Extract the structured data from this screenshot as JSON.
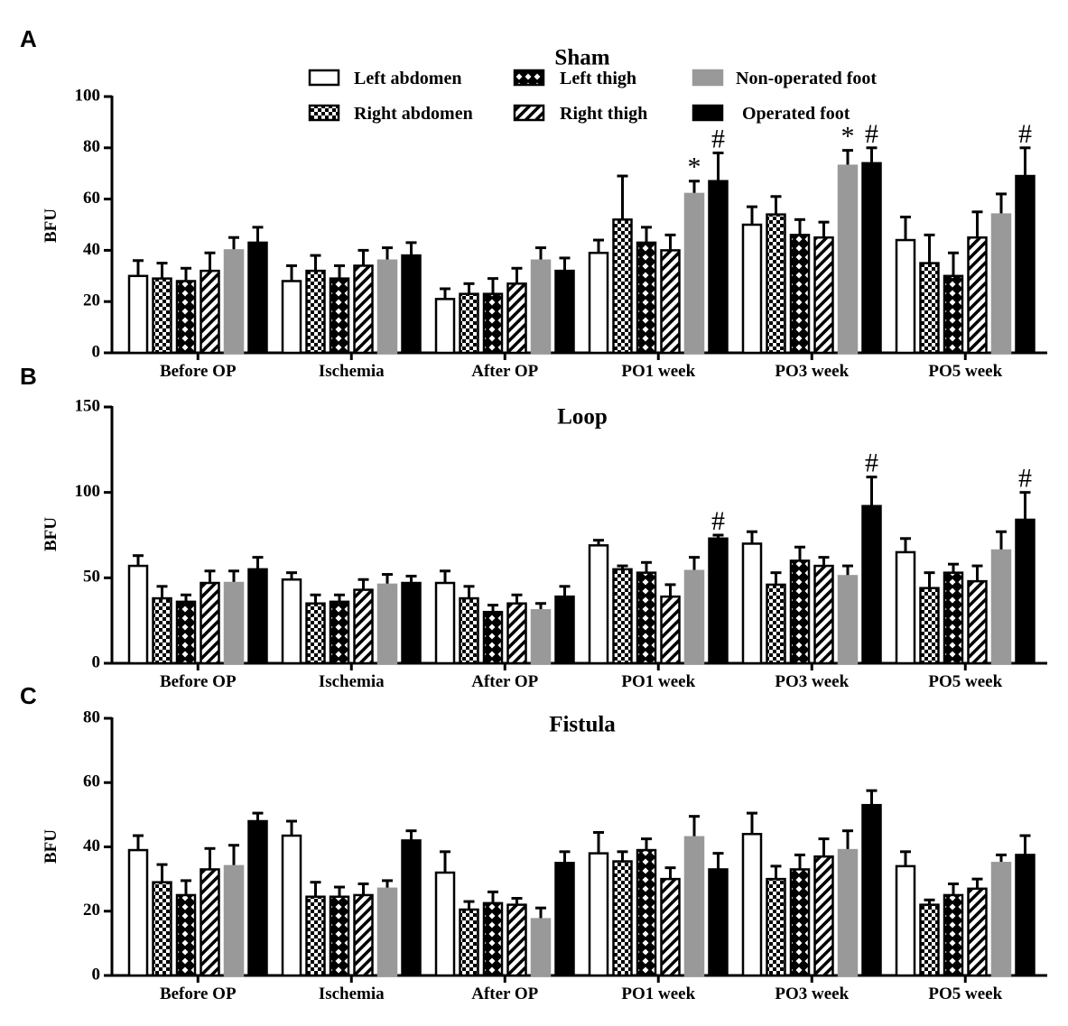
{
  "figure": {
    "legend": [
      {
        "label": "Left abdomen",
        "pattern": "white"
      },
      {
        "label": "Right abdomen",
        "pattern": "checker"
      },
      {
        "label": "Left thigh",
        "pattern": "diamond"
      },
      {
        "label": "Right thigh",
        "pattern": "diagonal"
      },
      {
        "label": "Non-operated foot",
        "pattern": "gray"
      },
      {
        "label": "Operated foot",
        "pattern": "black"
      }
    ],
    "colors": {
      "gray": "#999999",
      "black": "#000000",
      "white": "#ffffff"
    }
  },
  "chart_data": [
    {
      "type": "bar",
      "panel_letter": "A",
      "title": "Sham",
      "ylabel": "BFU",
      "xlabel": "",
      "ylim": [
        0,
        100
      ],
      "yticks": [
        "0",
        "20",
        "40",
        "60",
        "80",
        "100"
      ],
      "categories": [
        "Before OP",
        "Ischemia",
        "After OP",
        "PO1 week",
        "PO3 week",
        "PO5 week"
      ],
      "series": [
        {
          "name": "Left abdomen",
          "values": [
            30,
            28,
            21,
            39,
            50,
            44
          ],
          "errors": [
            6,
            6,
            4,
            5,
            7,
            9
          ]
        },
        {
          "name": "Right abdomen",
          "values": [
            29,
            32,
            23,
            52,
            54,
            35
          ],
          "errors": [
            6,
            6,
            4,
            17,
            7,
            11
          ]
        },
        {
          "name": "Left thigh",
          "values": [
            28,
            29,
            23,
            43,
            46,
            30
          ],
          "errors": [
            5,
            5,
            6,
            6,
            6,
            9
          ]
        },
        {
          "name": "Right thigh",
          "values": [
            32,
            34,
            27,
            40,
            45,
            45
          ],
          "errors": [
            7,
            6,
            6,
            6,
            6,
            10
          ]
        },
        {
          "name": "Non-operated foot",
          "values": [
            40,
            36,
            36,
            62,
            73,
            54
          ],
          "errors": [
            5,
            5,
            5,
            5,
            6,
            8
          ]
        },
        {
          "name": "Operated foot",
          "values": [
            43,
            38,
            32,
            67,
            74,
            69
          ],
          "errors": [
            6,
            5,
            5,
            11,
            6,
            11
          ]
        }
      ],
      "annotations": [
        {
          "category": "PO1 week",
          "series": "Non-operated foot",
          "symbol": "*"
        },
        {
          "category": "PO1 week",
          "series": "Operated foot",
          "symbol": "#"
        },
        {
          "category": "PO3 week",
          "series": "Non-operated foot",
          "symbol": "*"
        },
        {
          "category": "PO3 week",
          "series": "Operated foot",
          "symbol": "#"
        },
        {
          "category": "PO5 week",
          "series": "Operated foot",
          "symbol": "#"
        }
      ]
    },
    {
      "type": "bar",
      "panel_letter": "B",
      "title": "Loop",
      "ylabel": "BFU",
      "xlabel": "",
      "ylim": [
        0,
        150
      ],
      "yticks": [
        "0",
        "50",
        "100",
        "150"
      ],
      "categories": [
        "Before OP",
        "Ischemia",
        "After OP",
        "PO1 week",
        "PO3 week",
        "PO5 week"
      ],
      "series": [
        {
          "name": "Left abdomen",
          "values": [
            57,
            49,
            47,
            69,
            70,
            65
          ],
          "errors": [
            6,
            4,
            7,
            3,
            7,
            8
          ]
        },
        {
          "name": "Right abdomen",
          "values": [
            38,
            35,
            38,
            55,
            46,
            44
          ],
          "errors": [
            7,
            5,
            7,
            2,
            7,
            9
          ]
        },
        {
          "name": "Left thigh",
          "values": [
            36,
            36,
            30,
            53,
            60,
            53
          ],
          "errors": [
            4,
            4,
            4,
            6,
            8,
            5
          ]
        },
        {
          "name": "Right thigh",
          "values": [
            47,
            43,
            35,
            39,
            57,
            48
          ],
          "errors": [
            7,
            6,
            5,
            7,
            5,
            9
          ]
        },
        {
          "name": "Non-operated foot",
          "values": [
            47,
            46,
            31,
            54,
            51,
            66
          ],
          "errors": [
            7,
            6,
            4,
            8,
            6,
            11
          ]
        },
        {
          "name": "Operated foot",
          "values": [
            55,
            47,
            39,
            73,
            92,
            84
          ],
          "errors": [
            7,
            4,
            6,
            2,
            17,
            16
          ]
        }
      ],
      "annotations": [
        {
          "category": "PO1 week",
          "series": "Operated foot",
          "symbol": "#"
        },
        {
          "category": "PO3 week",
          "series": "Operated foot",
          "symbol": "#"
        },
        {
          "category": "PO5 week",
          "series": "Operated foot",
          "symbol": "#"
        }
      ]
    },
    {
      "type": "bar",
      "panel_letter": "C",
      "title": "Fistula",
      "ylabel": "BFU",
      "xlabel": "",
      "ylim": [
        0,
        80
      ],
      "yticks": [
        "0",
        "20",
        "40",
        "60",
        "80"
      ],
      "categories": [
        "Before OP",
        "Ischemia",
        "After OP",
        "PO1 week",
        "PO3 week",
        "PO5 week"
      ],
      "series": [
        {
          "name": "Left abdomen",
          "values": [
            39,
            43.5,
            32,
            38,
            44,
            34
          ],
          "errors": [
            4.5,
            4.5,
            6.5,
            6.5,
            6.5,
            4.5
          ]
        },
        {
          "name": "Right abdomen",
          "values": [
            29,
            24.5,
            20.5,
            35.5,
            30,
            22
          ],
          "errors": [
            5.5,
            4.5,
            2.5,
            3,
            4,
            1.5
          ]
        },
        {
          "name": "Left thigh",
          "values": [
            25,
            24.5,
            22.5,
            39,
            33,
            25
          ],
          "errors": [
            4.5,
            3,
            3.5,
            3.5,
            4.5,
            3.5
          ]
        },
        {
          "name": "Right thigh",
          "values": [
            33,
            25,
            22,
            30,
            37,
            27
          ],
          "errors": [
            6.5,
            3.5,
            2,
            3.5,
            5.5,
            3
          ]
        },
        {
          "name": "Non-operated foot",
          "values": [
            34,
            27,
            17.5,
            43,
            39,
            35
          ],
          "errors": [
            6.5,
            2.5,
            3.5,
            6.5,
            6,
            2.5
          ]
        },
        {
          "name": "Operated foot",
          "values": [
            48,
            42,
            35,
            33,
            53,
            37.5
          ],
          "errors": [
            2.5,
            3,
            3.5,
            5,
            4.5,
            6
          ]
        }
      ],
      "annotations": []
    }
  ]
}
